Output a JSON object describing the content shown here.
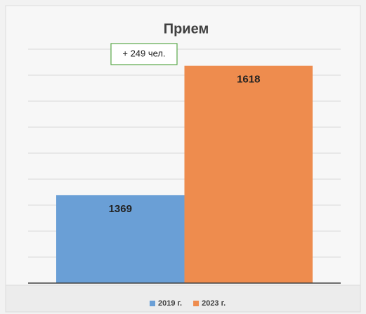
{
  "chart_data": {
    "type": "bar",
    "title": "Прием",
    "categories": [
      null
    ],
    "series": [
      {
        "name": "2019 г.",
        "color": "#6a9fd6",
        "values": [
          1369
        ]
      },
      {
        "name": "2023 г.",
        "color": "#ee8c4e",
        "values": [
          1618
        ]
      }
    ],
    "annotation": "+ 249 чел.",
    "ylim": [
      1200,
      1650
    ],
    "yticks": [
      1200,
      1250,
      1300,
      1350,
      1400,
      1450,
      1500,
      1550,
      1600,
      1650
    ],
    "grid": true,
    "legend": "bottom"
  }
}
